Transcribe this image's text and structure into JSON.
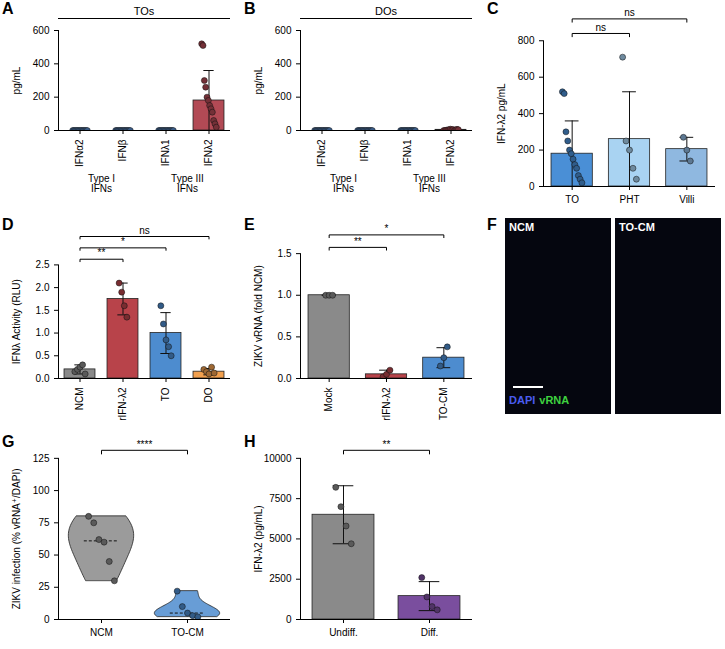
{
  "chart_data": [
    {
      "panel": "A",
      "type": "bar",
      "title": "TOs",
      "ylabel": "pg/mL",
      "categories": [
        "IFNα2",
        "IFNβ",
        "IFNλ1",
        "IFNλ2"
      ],
      "groups": [
        {
          "label": "Type I IFNs",
          "categories": [
            "IFNα2",
            "IFNβ"
          ]
        },
        {
          "label": "Type III IFNs",
          "categories": [
            "IFNλ1",
            "IFNλ2"
          ]
        }
      ],
      "values": [
        0,
        0,
        0,
        180
      ],
      "errors": [
        0,
        0,
        0,
        180
      ],
      "points": [
        [
          0,
          0,
          0,
          0,
          0,
          0,
          0,
          0,
          0,
          0,
          0,
          0
        ],
        [
          0,
          0,
          0,
          0,
          0,
          0,
          0,
          0,
          0,
          0,
          0,
          0
        ],
        [
          0,
          0,
          0,
          0,
          0,
          0,
          0,
          0,
          0,
          0,
          0,
          0
        ],
        [
          520,
          510,
          300,
          260,
          200,
          180,
          150,
          130,
          110,
          60,
          40,
          20
        ]
      ],
      "colors": [
        "#5a8fd0",
        "#5a8fd0",
        "#5a8fd0",
        "#b24a55"
      ],
      "ylim": [
        0,
        600
      ],
      "yticks": [
        0,
        200,
        400,
        600
      ]
    },
    {
      "panel": "B",
      "type": "bar",
      "title": "DOs",
      "ylabel": "pg/mL",
      "categories": [
        "IFNα2",
        "IFNβ",
        "IFNλ1",
        "IFNλ2"
      ],
      "groups": [
        {
          "label": "Type I IFNs",
          "categories": [
            "IFNα2",
            "IFNβ"
          ]
        },
        {
          "label": "Type III IFNs",
          "categories": [
            "IFNλ1",
            "IFNλ2"
          ]
        }
      ],
      "values": [
        0,
        0,
        0,
        4
      ],
      "errors": [
        0,
        0,
        0,
        3
      ],
      "points": [
        [
          0,
          0,
          0,
          0,
          0,
          0,
          0,
          0,
          0,
          0,
          0,
          0
        ],
        [
          0,
          0,
          0,
          0,
          0,
          0,
          0,
          0,
          0,
          0,
          0,
          0
        ],
        [
          0,
          0,
          0,
          0,
          0,
          0,
          0,
          0,
          0,
          0,
          0,
          0
        ],
        [
          0,
          0,
          2,
          3,
          5,
          8,
          4,
          6,
          0,
          3,
          7,
          5
        ]
      ],
      "colors": [
        "#5a8fd0",
        "#5a8fd0",
        "#5a8fd0",
        "#b24a55"
      ],
      "ylim": [
        0,
        600
      ],
      "yticks": [
        0,
        200,
        400,
        600
      ]
    },
    {
      "panel": "C",
      "type": "bar",
      "ylabel": "IFN-λ2 pg/mL",
      "categories": [
        "TO",
        "PHT",
        "Villi"
      ],
      "values": [
        180,
        260,
        205
      ],
      "errors": [
        180,
        260,
        65
      ],
      "points": [
        [
          520,
          510,
          300,
          250,
          200,
          180,
          150,
          120,
          100,
          60,
          40,
          20
        ],
        [
          710,
          250,
          200,
          100,
          40
        ],
        [
          270,
          200,
          140
        ]
      ],
      "colors": [
        "#4a8fd6",
        "#a9d3f2",
        "#8fb8e0"
      ],
      "comparisons": [
        {
          "pair": [
            "TO",
            "PHT"
          ],
          "label": "ns"
        },
        {
          "pair": [
            "TO",
            "Villi"
          ],
          "label": "ns"
        }
      ],
      "ylim": [
        0,
        800
      ],
      "yticks": [
        0,
        200,
        400,
        600,
        800
      ]
    },
    {
      "panel": "D",
      "type": "bar",
      "ylabel": "IFNλ Activity (RLU)",
      "categories": [
        "NCM",
        "rIFN-λ2",
        "TO",
        "DO"
      ],
      "values": [
        0.2,
        1.75,
        1.0,
        0.15
      ],
      "errors": [
        0.1,
        0.35,
        0.45,
        0.07
      ],
      "points": [
        [
          0.15,
          0.2,
          0.25,
          0.3,
          0.1
        ],
        [
          2.1,
          1.9,
          1.6,
          1.35
        ],
        [
          1.6,
          1.2,
          0.85,
          0.7,
          0.5
        ],
        [
          0.2,
          0.15,
          0.1,
          0.25,
          0.12
        ]
      ],
      "colors": [
        "#8a8a8a",
        "#b8434a",
        "#4d8ccf",
        "#f2a04e"
      ],
      "comparisons": [
        {
          "pair": [
            "NCM",
            "rIFN-λ2"
          ],
          "label": "**"
        },
        {
          "pair": [
            "NCM",
            "TO"
          ],
          "label": "*"
        },
        {
          "pair": [
            "NCM",
            "DO"
          ],
          "label": "ns"
        }
      ],
      "ylim": [
        0,
        2.5
      ],
      "yticks": [
        {
          "value": 0,
          "label": "0.0"
        },
        {
          "value": 0.5,
          "label": "0.5"
        },
        {
          "value": 1,
          "label": "1.0"
        },
        {
          "value": 1.5,
          "label": "1.5"
        },
        {
          "value": 2,
          "label": "2.0"
        },
        {
          "value": 2.5,
          "label": "2.5"
        }
      ]
    },
    {
      "panel": "E",
      "type": "bar",
      "ylabel": "ZIKV vRNA (fold NCM)",
      "categories": [
        "Mock",
        "rIFN-λ2",
        "TO-CM"
      ],
      "values": [
        1.0,
        0.05,
        0.25
      ],
      "errors": [
        0,
        0.05,
        0.12
      ],
      "points": [
        [
          1,
          1,
          1
        ],
        [
          0.02,
          0.05,
          0.1
        ],
        [
          0.15,
          0.25,
          0.38
        ]
      ],
      "colors": [
        "#8a8a8a",
        "#b8434a",
        "#4d8ccf"
      ],
      "comparisons": [
        {
          "pair": [
            "Mock",
            "rIFN-λ2"
          ],
          "label": "**"
        },
        {
          "pair": [
            "Mock",
            "TO-CM"
          ],
          "label": "*"
        }
      ],
      "ylim": [
        0,
        1.5
      ],
      "yticks": [
        {
          "value": 0,
          "label": "0.0"
        },
        {
          "value": 0.5,
          "label": "0.5"
        },
        {
          "value": 1,
          "label": "1.0"
        },
        {
          "value": 1.5,
          "label": "1.5"
        }
      ]
    },
    {
      "panel": "F",
      "type": "image",
      "labels": [
        "NCM",
        "TO-CM"
      ],
      "legend": [
        {
          "name": "DAPI",
          "color": "#4a5cf0"
        },
        {
          "name": "vRNA",
          "color": "#3fd13f"
        }
      ]
    },
    {
      "panel": "G",
      "type": "violin",
      "ylabel": "ZIKV infection (% vRNA⁺/DAPI)",
      "categories": [
        "NCM",
        "TO-CM"
      ],
      "points": [
        [
          80,
          75,
          62,
          60,
          45,
          30
        ],
        [
          22,
          10,
          5,
          3,
          2
        ]
      ],
      "colors": [
        "#8a8a8a",
        "#4d8ccf"
      ],
      "comparisons": [
        {
          "pair": [
            "NCM",
            "TO-CM"
          ],
          "label": "****"
        }
      ],
      "ylim": [
        0,
        125
      ],
      "yticks": [
        0,
        25,
        50,
        75,
        100,
        125
      ]
    },
    {
      "panel": "H",
      "type": "bar",
      "ylabel": "IFN-λ2 (pg/mL)",
      "categories": [
        "Undiff.",
        "Diff."
      ],
      "values": [
        6500,
        1450
      ],
      "errors": [
        1800,
        900
      ],
      "points": [
        [
          8200,
          7000,
          5800,
          4700
        ],
        [
          2600,
          1400,
          800,
          600
        ]
      ],
      "colors": [
        "#8a8a8a",
        "#7a4e9e"
      ],
      "comparisons": [
        {
          "pair": [
            "Undiff.",
            "Diff."
          ],
          "label": "**"
        }
      ],
      "ylim": [
        0,
        10000
      ],
      "yticks": [
        0,
        2500,
        5000,
        7500,
        10000
      ]
    }
  ]
}
